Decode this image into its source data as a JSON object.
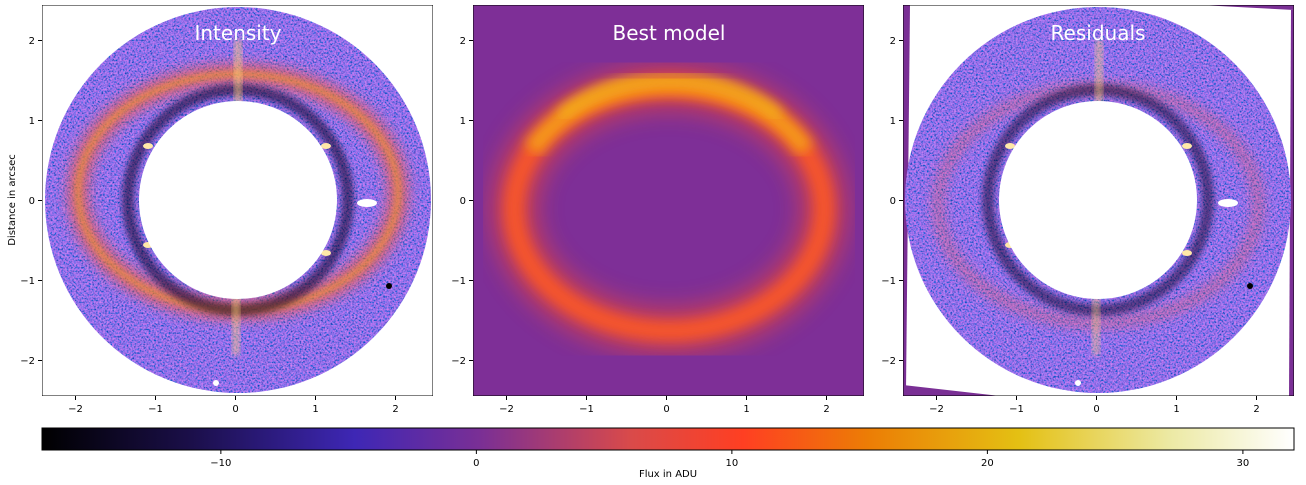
{
  "figure": {
    "panels": [
      {
        "title": "Intensity"
      },
      {
        "title": "Best model"
      },
      {
        "title": "Residuals"
      }
    ],
    "ylabel": "Distance in arcsec",
    "x_ticks": [
      "−2",
      "−1",
      "0",
      "1",
      "2"
    ],
    "y_ticks": [
      "2",
      "1",
      "0",
      "−1",
      "−2"
    ],
    "colorbar": {
      "label": "Flux in ADU",
      "ticks": [
        "−10",
        "0",
        "10",
        "20",
        "30"
      ],
      "range": [
        -17,
        32
      ],
      "colormap": "CMRmap-like (black → purple → red-orange → yellow → white)"
    }
  },
  "colors": {
    "background_model": "#7e2f97",
    "ring_noise_base": "#5a2aa6",
    "ring_glow": "#ff5a2a",
    "ring_core": "#f5b316"
  }
}
